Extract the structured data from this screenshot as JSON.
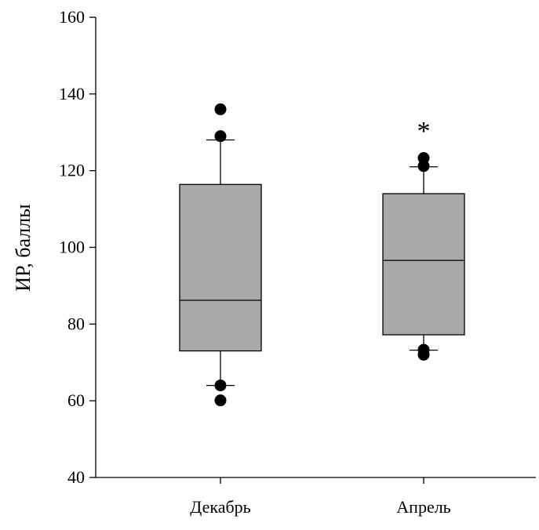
{
  "chart_data": {
    "type": "boxplot",
    "ylabel": "ИР, баллы",
    "xlabel": "",
    "ylim": [
      40,
      160
    ],
    "yticks": [
      40,
      60,
      80,
      100,
      120,
      140,
      160
    ],
    "grid": false,
    "box_color": "#a9a9a9",
    "categories": [
      "Декабрь",
      "Апрель"
    ],
    "boxes": [
      {
        "name": "Декабрь",
        "whisker_low": 64,
        "q1": 73,
        "median": 86.2,
        "q3": 116.4,
        "whisker_high": 128,
        "outliers": [
          136,
          129,
          64,
          60.1
        ],
        "annotation": ""
      },
      {
        "name": "Апрель",
        "whisker_low": 73.2,
        "q1": 77.2,
        "median": 96.6,
        "q3": 114,
        "whisker_high": 121,
        "outliers": [
          123.3,
          121.2,
          73.3,
          72
        ],
        "annotation": "*"
      }
    ]
  }
}
